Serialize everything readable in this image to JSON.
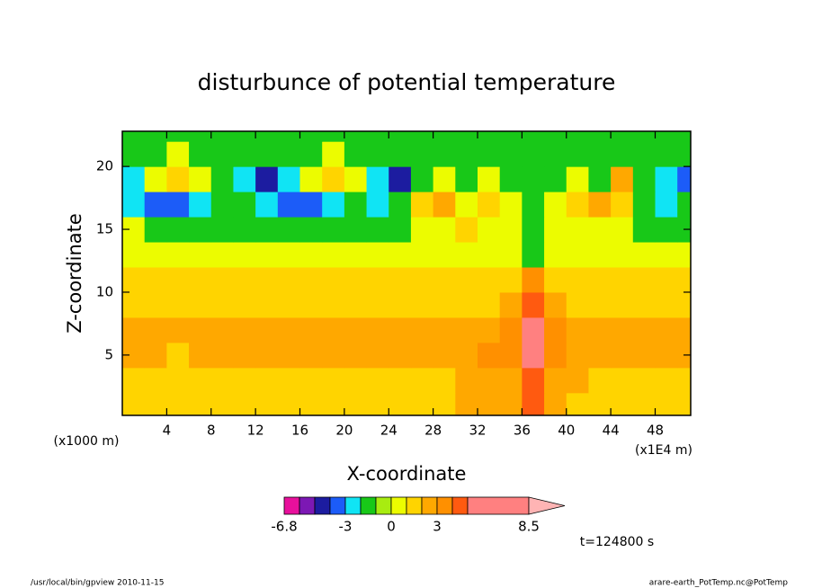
{
  "chart_data": {
    "type": "contour",
    "title": "disturbunce of potential temperature",
    "xlabel": "X-coordinate",
    "ylabel": "Z-coordinate",
    "x_unit_label": "(x1E4 m)",
    "y_unit_label": "(x1000 m)",
    "xlim": [
      0,
      51.2
    ],
    "ylim": [
      0.2,
      22.8
    ],
    "xticks": [
      4,
      8,
      12,
      16,
      20,
      24,
      28,
      32,
      36,
      40,
      44,
      48
    ],
    "yticks": [
      5,
      10,
      15,
      20
    ],
    "x": [
      1,
      3,
      5,
      7,
      9,
      11,
      13,
      15,
      17,
      19,
      21,
      23,
      25,
      27,
      29,
      31,
      33,
      35,
      37,
      39,
      41,
      43,
      45,
      47,
      49,
      51
    ],
    "y": [
      1,
      3,
      5,
      7,
      9,
      11,
      13,
      15,
      17,
      19,
      21,
      23
    ],
    "z": [
      [
        1.5,
        1.5,
        1.5,
        1.5,
        1.5,
        1.5,
        1.5,
        1.5,
        1.5,
        1.5,
        1.5,
        1.5,
        1.5,
        1.5,
        1.5,
        2.5,
        2.5,
        2.5,
        4.5,
        2.5,
        1.5,
        1.5,
        1.5,
        1.5,
        1.5,
        1.5
      ],
      [
        1.5,
        1.5,
        1.5,
        1.5,
        1.5,
        1.5,
        1.5,
        1.5,
        1.5,
        1.5,
        1.5,
        1.5,
        1.5,
        1.5,
        1.5,
        2.5,
        2.5,
        2.5,
        4.5,
        2.5,
        2.5,
        1.5,
        1.5,
        1.5,
        1.5,
        1.5
      ],
      [
        2.5,
        2.5,
        1.5,
        2.5,
        2.5,
        2.5,
        2.5,
        2.5,
        2.5,
        2.5,
        2.5,
        2.5,
        2.5,
        2.5,
        2.5,
        2.5,
        3.5,
        3.5,
        5.5,
        3.5,
        2.5,
        2.5,
        2.5,
        2.5,
        2.5,
        2.5
      ],
      [
        2.5,
        2.5,
        2.5,
        2.5,
        2.5,
        2.5,
        2.5,
        2.5,
        2.5,
        2.5,
        2.5,
        2.5,
        2.5,
        2.5,
        2.5,
        2.5,
        2.5,
        3.5,
        5.5,
        3.5,
        2.5,
        2.5,
        2.5,
        2.5,
        2.5,
        2.5
      ],
      [
        1.5,
        1.5,
        1.5,
        1.5,
        1.5,
        1.5,
        1.5,
        1.5,
        1.5,
        1.5,
        1.5,
        1.5,
        1.5,
        1.5,
        1.5,
        1.5,
        1.5,
        2.5,
        4.5,
        2.5,
        1.5,
        1.5,
        1.5,
        1.5,
        1.5,
        1.5
      ],
      [
        1.5,
        1.5,
        1.5,
        1.5,
        1.5,
        1.5,
        1.5,
        1.5,
        1.5,
        1.5,
        1.5,
        1.5,
        1.5,
        1.5,
        1.5,
        1.5,
        1.5,
        1.5,
        3.5,
        1.5,
        1.5,
        1.5,
        1.5,
        1.5,
        1.5,
        1.5
      ],
      [
        0.5,
        0.5,
        0.5,
        0.5,
        0.5,
        0.5,
        0.5,
        0.5,
        0.5,
        0.5,
        0.5,
        0.5,
        0.5,
        0.5,
        0.5,
        0.5,
        0.5,
        0.5,
        -1.5,
        0.5,
        0.5,
        0.5,
        0.5,
        0.5,
        0.5,
        0.5
      ],
      [
        0.5,
        -1.5,
        -1.5,
        -1.5,
        -1.5,
        -1.5,
        -1.5,
        -1.5,
        -1.5,
        -1.5,
        -1.5,
        -1.5,
        -1.5,
        0.5,
        0.5,
        1.5,
        0.5,
        0.5,
        -1.5,
        0.5,
        0.5,
        0.5,
        0.5,
        -1.5,
        -1.5,
        -1.5
      ],
      [
        -2.5,
        -3.5,
        -3.5,
        -2.5,
        -1.5,
        -1.5,
        -2.5,
        -3.5,
        -3.5,
        -2.5,
        -1.5,
        -2.5,
        -1.5,
        1.5,
        2.5,
        0.5,
        1.5,
        0.5,
        -1.5,
        0.5,
        1.5,
        2.5,
        1.5,
        -1.5,
        -2.5,
        -1.5
      ],
      [
        -2.5,
        0.5,
        1.5,
        0.5,
        -1.5,
        -2.5,
        -4.5,
        -2.5,
        0.5,
        1.5,
        0.5,
        -2.5,
        -4.5,
        -1.5,
        0.5,
        -1.5,
        0.5,
        -1.5,
        -1.5,
        -1.5,
        0.5,
        -1.5,
        2.5,
        -1.5,
        -2.5,
        -3.5
      ],
      [
        -1.5,
        -1.5,
        0.5,
        -1.5,
        -1.5,
        -1.5,
        -1.5,
        -1.5,
        -1.5,
        0.5,
        -1.5,
        -1.5,
        -1.5,
        -1.5,
        -1.5,
        -1.5,
        -1.5,
        -1.5,
        -1.5,
        -1.5,
        -1.5,
        -1.5,
        -1.5,
        -1.5,
        -1.5,
        -1.5
      ],
      [
        -1.5,
        -1.5,
        -1.5,
        -1.5,
        -1.5,
        -1.5,
        -1.5,
        -1.5,
        -1.5,
        -1.5,
        -1.5,
        -1.5,
        -1.5,
        -1.5,
        -1.5,
        -1.5,
        -1.5,
        -1.5,
        -1.5,
        -1.5,
        -1.5,
        -1.5,
        -1.5,
        -1.5,
        -1.5,
        -1.5
      ]
    ],
    "colorbar": {
      "levels": [
        -6.8,
        -6,
        -5,
        -4,
        -3,
        -2,
        -1,
        0,
        1,
        2,
        3,
        4,
        5,
        8.5
      ],
      "colors": [
        "#e8109c",
        "#7c18b4",
        "#1c1ca0",
        "#1c5cf8",
        "#10e4f4",
        "#18c818",
        "#a8ec10",
        "#ecfc00",
        "#ffd400",
        "#ffa800",
        "#ff9000",
        "#ff5a10",
        "#ff8080"
      ],
      "extend_color": "#ffb4b4",
      "ticks": [
        -6.8,
        -3,
        0,
        3,
        8.5
      ]
    },
    "time_label": "t=124800 s",
    "footer_left": "/usr/local/bin/gpview  2010-11-15",
    "footer_right": "arare-earth_PotTemp.nc@PotTemp"
  }
}
